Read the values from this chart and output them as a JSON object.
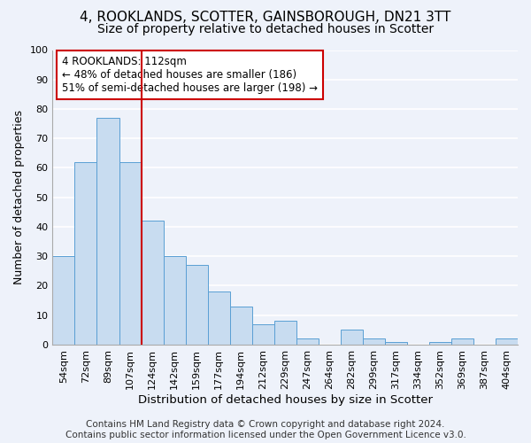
{
  "title": "4, ROOKLANDS, SCOTTER, GAINSBOROUGH, DN21 3TT",
  "subtitle": "Size of property relative to detached houses in Scotter",
  "xlabel": "Distribution of detached houses by size in Scotter",
  "ylabel": "Number of detached properties",
  "categories": [
    "54sqm",
    "72sqm",
    "89sqm",
    "107sqm",
    "124sqm",
    "142sqm",
    "159sqm",
    "177sqm",
    "194sqm",
    "212sqm",
    "229sqm",
    "247sqm",
    "264sqm",
    "282sqm",
    "299sqm",
    "317sqm",
    "334sqm",
    "352sqm",
    "369sqm",
    "387sqm",
    "404sqm"
  ],
  "values": [
    30,
    62,
    77,
    62,
    42,
    30,
    27,
    18,
    13,
    7,
    8,
    2,
    0,
    5,
    2,
    1,
    0,
    1,
    2,
    0,
    2
  ],
  "bar_color": "#c8dcf0",
  "bar_edge_color": "#5a9fd4",
  "vline_index": 3,
  "ylim": [
    0,
    100
  ],
  "yticks": [
    0,
    10,
    20,
    30,
    40,
    50,
    60,
    70,
    80,
    90,
    100
  ],
  "annotation_line1": "4 ROOKLANDS: 112sqm",
  "annotation_line2": "← 48% of detached houses are smaller (186)",
  "annotation_line3": "51% of semi-detached houses are larger (198) →",
  "annotation_box_color": "#ffffff",
  "annotation_box_edge": "#cc0000",
  "vline_color": "#cc0000",
  "background_color": "#eef2fa",
  "grid_color": "#ffffff",
  "footer_line1": "Contains HM Land Registry data © Crown copyright and database right 2024.",
  "footer_line2": "Contains public sector information licensed under the Open Government Licence v3.0.",
  "title_fontsize": 11,
  "subtitle_fontsize": 10,
  "xlabel_fontsize": 9.5,
  "ylabel_fontsize": 9,
  "tick_fontsize": 8,
  "annot_fontsize": 8.5,
  "footer_fontsize": 7.5
}
